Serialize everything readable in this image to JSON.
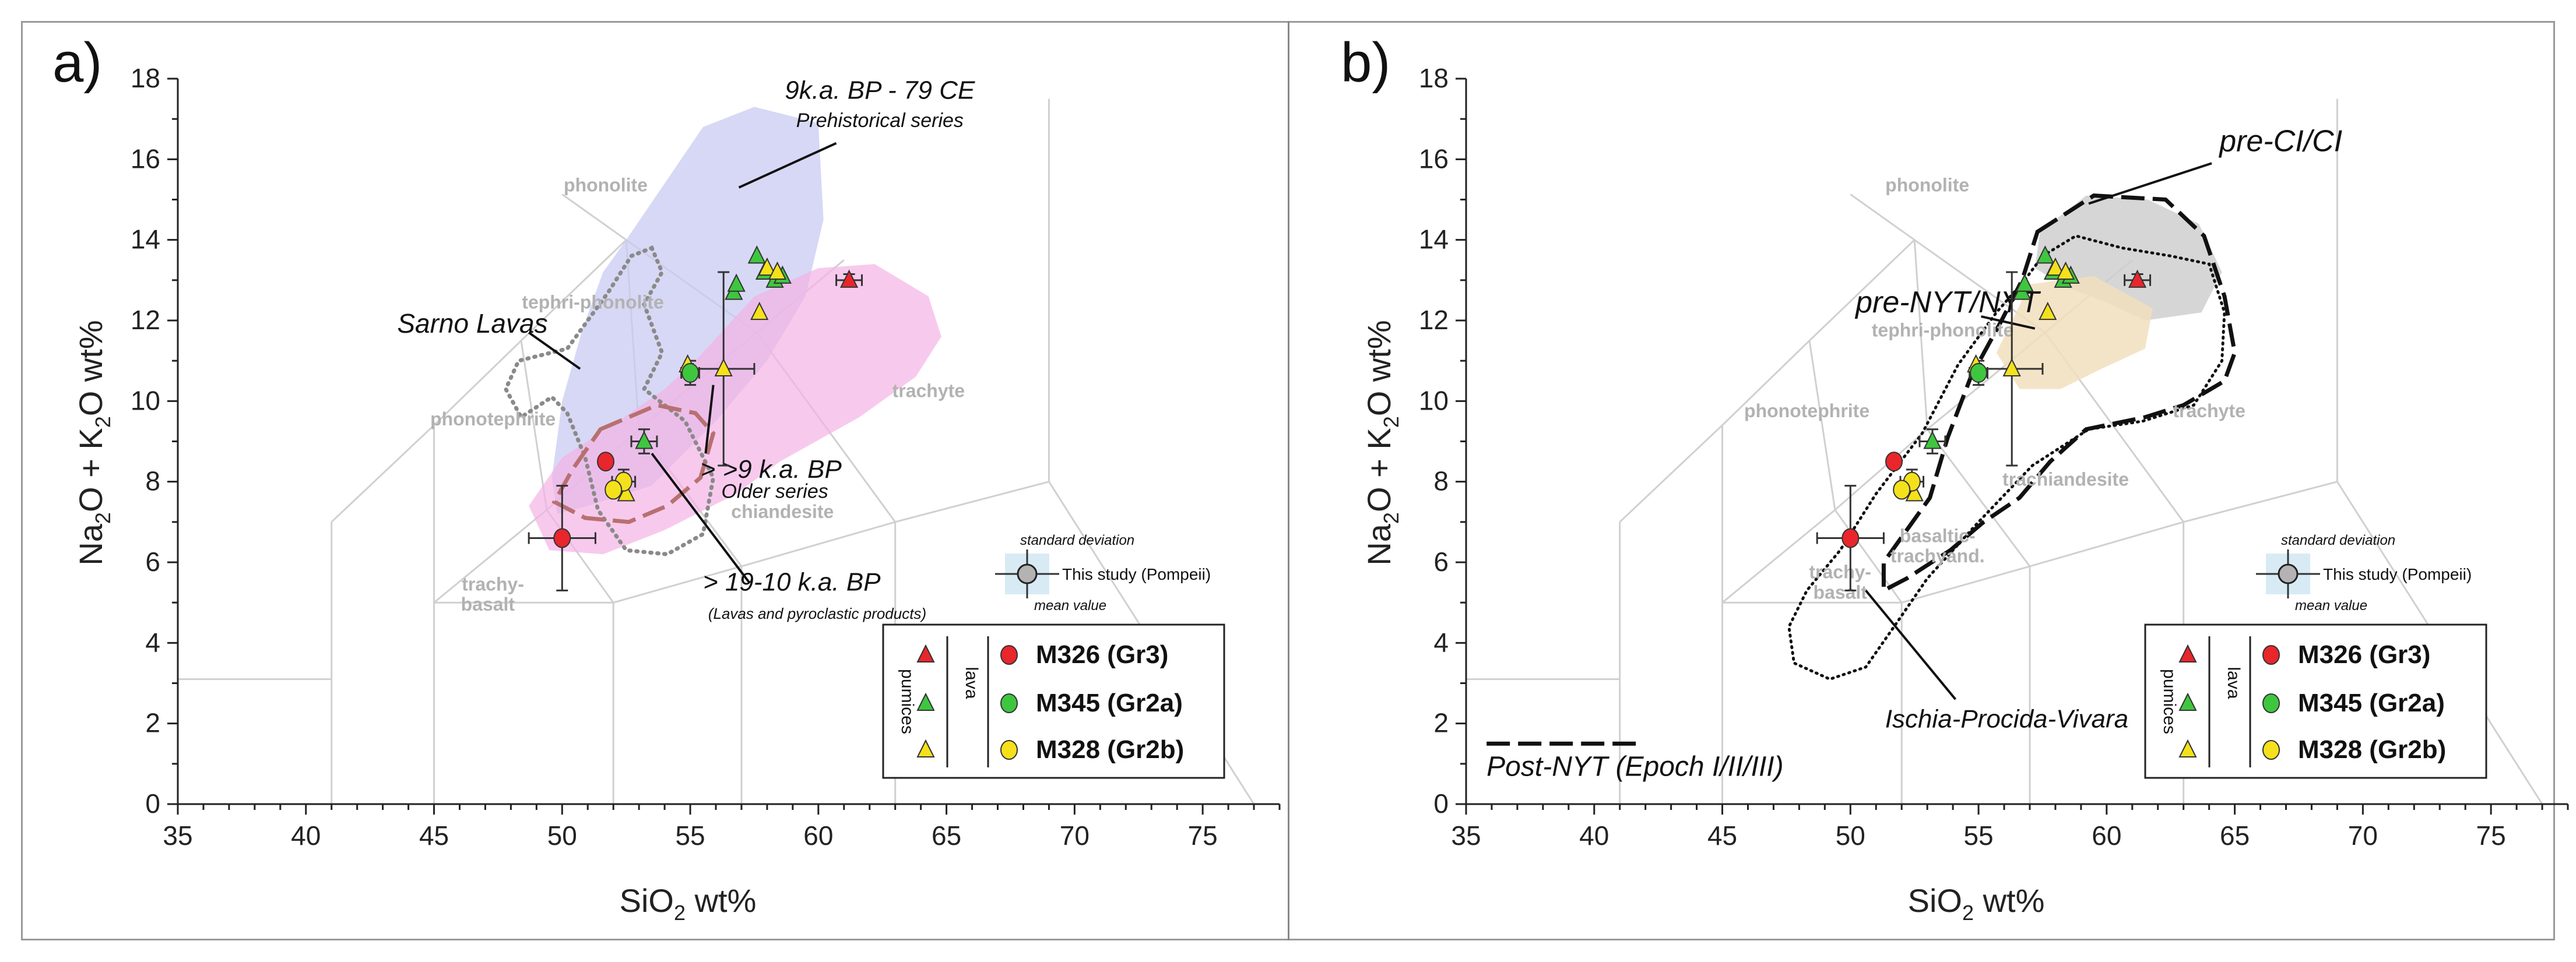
{
  "chart_data": [
    {
      "type": "scatter",
      "panel_label": "a)",
      "xlabel": "SiO₂ wt%",
      "ylabel": "Na₂O + K₂O wt%",
      "xlim": [
        35,
        78
      ],
      "ylim": [
        0,
        18
      ],
      "xticks": [
        "35",
        "40",
        "45",
        "50",
        "55",
        "60",
        "65",
        "70",
        "75"
      ],
      "yticks": [
        "0",
        "2",
        "4",
        "6",
        "8",
        "10",
        "12",
        "14",
        "16",
        "18"
      ],
      "tas_labels": [
        "phonolite",
        "tephri-phonolite",
        "phonotephrite",
        "trachyte",
        "chiandesite",
        "trachy-",
        "basalt"
      ],
      "annotations": {
        "prehistoric_title": "9k.a. BP - 79 CE",
        "prehistoric_sub": "Prehistorical series",
        "sarno": "Sarno Lavas",
        "older_title": "> >9 k.a. BP",
        "older_sub": "Older series",
        "young_title": "> 19-10 k.a. BP",
        "young_sub": "(Lavas and pyroclastic products)"
      },
      "series": [
        {
          "name": "M326 (Gr3) pumices",
          "marker": "triangle",
          "color": "#e8262b",
          "points": [
            [
              61.2,
              13.0
            ]
          ]
        },
        {
          "name": "M345 (Gr2a) pumices",
          "marker": "triangle",
          "color": "#3fc63f",
          "points": [
            [
              57.6,
              13.6
            ],
            [
              56.7,
              12.7
            ],
            [
              56.8,
              12.9
            ],
            [
              57.9,
              13.2
            ],
            [
              58.3,
              13.0
            ],
            [
              58.6,
              13.1
            ],
            [
              53.2,
              9.0
            ]
          ]
        },
        {
          "name": "M328 (Gr2b) pumices",
          "marker": "triangle",
          "color": "#f5e11b",
          "points": [
            [
              57.7,
              12.2
            ],
            [
              58.0,
              13.3
            ],
            [
              58.4,
              13.2
            ],
            [
              54.9,
              10.9
            ],
            [
              56.3,
              10.8
            ],
            [
              52.5,
              7.7
            ]
          ]
        },
        {
          "name": "M326 (Gr3) lava",
          "marker": "circle",
          "color": "#e8262b",
          "points": [
            [
              51.7,
              8.5
            ],
            [
              50.0,
              6.6
            ]
          ]
        },
        {
          "name": "M345 (Gr2a) lava",
          "marker": "circle",
          "color": "#3fc63f",
          "points": [
            [
              55.0,
              10.7
            ]
          ]
        },
        {
          "name": "M328 (Gr2b) lava",
          "marker": "circle",
          "color": "#f5e11b",
          "points": [
            [
              52.4,
              8.0
            ],
            [
              52.0,
              7.8
            ]
          ]
        }
      ]
    },
    {
      "type": "scatter",
      "panel_label": "b)",
      "xlabel": "SiO₂ wt%",
      "ylabel": "Na₂O + K₂O wt%",
      "xlim": [
        35,
        78
      ],
      "ylim": [
        0,
        18
      ],
      "xticks": [
        "35",
        "40",
        "45",
        "50",
        "55",
        "60",
        "65",
        "70",
        "75"
      ],
      "yticks": [
        "0",
        "2",
        "4",
        "6",
        "8",
        "10",
        "12",
        "14",
        "16",
        "18"
      ],
      "tas_labels": [
        "phonolite",
        "tephri-phonolite",
        "phonotephrite",
        "trachyte",
        "trachiandesite",
        "basaltic-",
        "trachyand.",
        "trachy-",
        "basalt"
      ],
      "annotations": {
        "preci": "pre-CI/CI",
        "prenyt": "pre-NYT/NYT",
        "ischia": "Ischia-Procida-Vivara",
        "postnyt": "Post-NYT (Epoch I/II/III)"
      },
      "series": [
        {
          "name": "M326 (Gr3) pumices",
          "marker": "triangle",
          "color": "#e8262b",
          "points": [
            [
              61.2,
              13.0
            ]
          ]
        },
        {
          "name": "M345 (Gr2a) pumices",
          "marker": "triangle",
          "color": "#3fc63f",
          "points": [
            [
              57.6,
              13.6
            ],
            [
              56.7,
              12.7
            ],
            [
              56.8,
              12.9
            ],
            [
              57.9,
              13.2
            ],
            [
              58.3,
              13.0
            ],
            [
              58.6,
              13.1
            ],
            [
              53.2,
              9.0
            ]
          ]
        },
        {
          "name": "M328 (Gr2b) pumices",
          "marker": "triangle",
          "color": "#f5e11b",
          "points": [
            [
              57.7,
              12.2
            ],
            [
              58.0,
              13.3
            ],
            [
              58.4,
              13.2
            ],
            [
              54.9,
              10.9
            ],
            [
              56.3,
              10.8
            ],
            [
              52.5,
              7.7
            ]
          ]
        },
        {
          "name": "M326 (Gr3) lava",
          "marker": "circle",
          "color": "#e8262b",
          "points": [
            [
              51.7,
              8.5
            ],
            [
              50.0,
              6.6
            ]
          ]
        },
        {
          "name": "M345 (Gr2a) lava",
          "marker": "circle",
          "color": "#3fc63f",
          "points": [
            [
              55.0,
              10.7
            ]
          ]
        },
        {
          "name": "M328 (Gr2b) lava",
          "marker": "circle",
          "color": "#f5e11b",
          "points": [
            [
              52.4,
              8.0
            ],
            [
              52.0,
              7.8
            ]
          ]
        }
      ]
    }
  ],
  "legend": {
    "entries": [
      "M326 (Gr3)",
      "M345 (Gr2a)",
      "M328 (Gr2b)"
    ],
    "pumices_label": "pumices",
    "lava_label": "lava",
    "std_dev_label": "standard deviation",
    "study_label": "This study (Pompeii)",
    "mean_label": "mean value"
  },
  "colors": {
    "gr3": "#e8262b",
    "gr2a": "#3fc63f",
    "gr2b": "#f5e11b",
    "blue_field": "#c9cbf2",
    "pink_field": "#f3b3e6",
    "grey_field": "#cfcfcf",
    "tan_field": "#f2dfbd"
  }
}
